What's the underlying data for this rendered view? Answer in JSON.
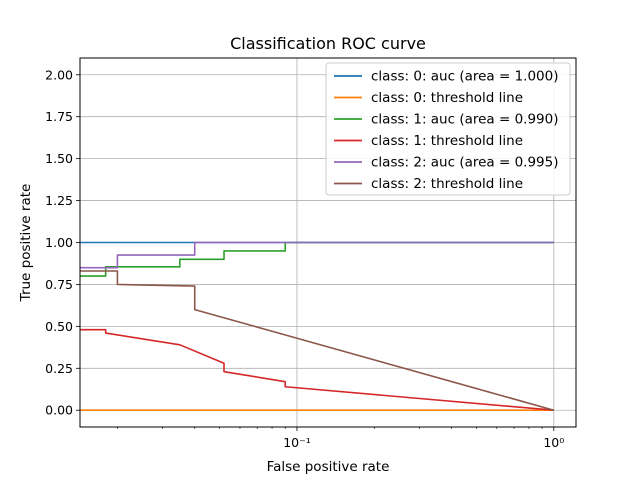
{
  "chart_data": {
    "type": "line",
    "title": "Classification ROC curve",
    "xlabel": "False positive rate",
    "ylabel": "True positive rate",
    "xscale": "log",
    "xlim": [
      0.0143,
      1.22
    ],
    "ylim": [
      -0.1,
      2.1
    ],
    "x_major_ticks": [
      {
        "value": 0.1,
        "label": "10⁻¹"
      },
      {
        "value": 1,
        "label": "10⁰"
      }
    ],
    "y_ticks": [
      0.0,
      0.25,
      0.5,
      0.75,
      1.0,
      1.25,
      1.5,
      1.75,
      2.0
    ],
    "y_tick_labels": [
      "0.00",
      "0.25",
      "0.50",
      "0.75",
      "1.00",
      "1.25",
      "1.50",
      "1.75",
      "2.00"
    ],
    "grid": true,
    "legend_position": "top-right",
    "series": [
      {
        "name": "class: 0: auc (area = 1.000)",
        "color": "#1f77b4",
        "points": [
          [
            0.0143,
            1.0
          ],
          [
            0.04,
            1.0
          ],
          [
            1.0,
            1.0
          ]
        ]
      },
      {
        "name": "class: 0: threshold line",
        "color": "#ff7f0e",
        "points": [
          [
            0.0143,
            0.0
          ],
          [
            1.0,
            0.0
          ]
        ]
      },
      {
        "name": "class: 1: auc (area = 0.990)",
        "color": "#2ca02c",
        "points": [
          [
            0.0143,
            0.8
          ],
          [
            0.018,
            0.8
          ],
          [
            0.018,
            0.855
          ],
          [
            0.035,
            0.855
          ],
          [
            0.035,
            0.9
          ],
          [
            0.052,
            0.9
          ],
          [
            0.052,
            0.95
          ],
          [
            0.09,
            0.95
          ],
          [
            0.09,
            1.0
          ],
          [
            1.0,
            1.0
          ]
        ]
      },
      {
        "name": "class: 1: threshold line",
        "color": "#d62728",
        "points": [
          [
            0.0143,
            0.48
          ],
          [
            0.018,
            0.48
          ],
          [
            0.018,
            0.46
          ],
          [
            0.035,
            0.39
          ],
          [
            0.052,
            0.28
          ],
          [
            0.052,
            0.23
          ],
          [
            0.09,
            0.17
          ],
          [
            0.09,
            0.14
          ],
          [
            1.0,
            0.0
          ]
        ]
      },
      {
        "name": "class: 2: auc (area = 0.995)",
        "color": "#9467bd",
        "points": [
          [
            0.0143,
            0.85
          ],
          [
            0.02,
            0.85
          ],
          [
            0.02,
            0.925
          ],
          [
            0.04,
            0.925
          ],
          [
            0.04,
            1.0
          ],
          [
            1.0,
            1.0
          ]
        ]
      },
      {
        "name": "class: 2: threshold line",
        "color": "#8c564b",
        "points": [
          [
            0.0143,
            0.83
          ],
          [
            0.02,
            0.83
          ],
          [
            0.02,
            0.75
          ],
          [
            0.04,
            0.74
          ],
          [
            0.04,
            0.6
          ],
          [
            1.0,
            0.0
          ]
        ]
      }
    ]
  }
}
